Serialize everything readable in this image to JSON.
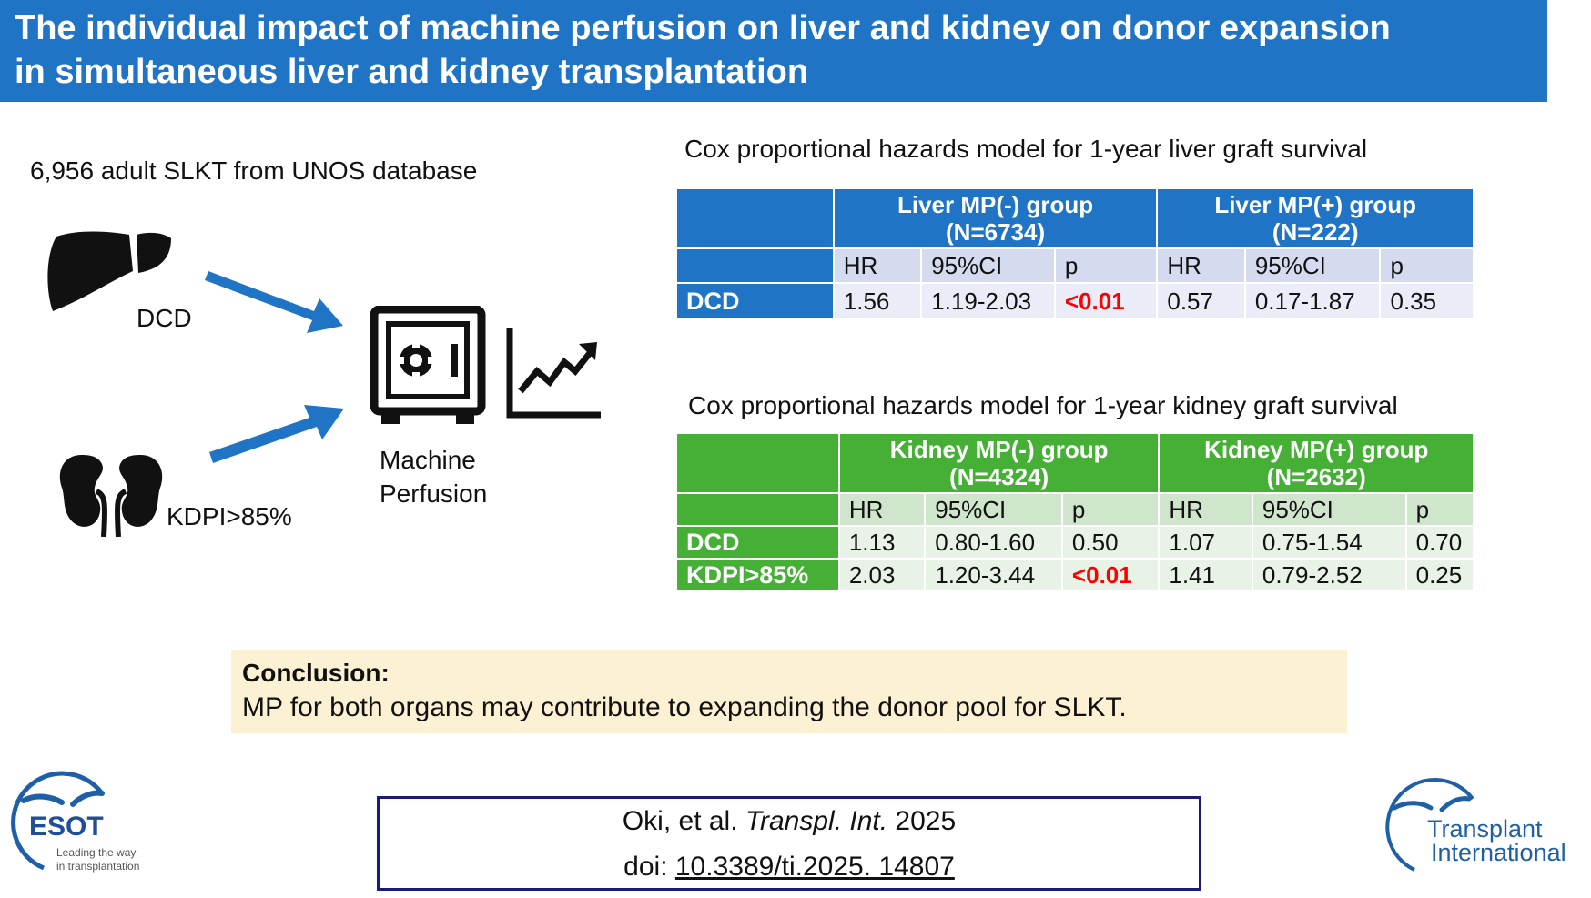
{
  "title": {
    "line1": "The individual impact of machine perfusion on liver and kidney on donor expansion",
    "line2": "in simultaneous liver and kidney transplantation"
  },
  "diagram": {
    "cohort": "6,956 adult SLKT from UNOS database",
    "liver_label": "DCD",
    "kidney_label": "KDPI>85%",
    "mp_label_line1": "Machine",
    "mp_label_line2": "Perfusion",
    "icons": [
      "liver-icon",
      "kidney-icon",
      "arrow-icon",
      "safe-icon",
      "trend-up-chart-icon"
    ]
  },
  "liver_table": {
    "title": "Cox proportional hazards model for 1-year liver graft survival",
    "group1_line1": "Liver MP(-) group",
    "group1_line2": "(N=6734)",
    "group2_line1": "Liver MP(+) group",
    "group2_line2": "(N=222)",
    "columns": [
      "HR",
      "95%CI",
      "p"
    ],
    "rows": [
      {
        "label": "DCD",
        "g1": [
          "1.56",
          "1.19-2.03",
          "<0.01"
        ],
        "g2": [
          "0.57",
          "0.17-1.87",
          "0.35"
        ]
      }
    ]
  },
  "kidney_table": {
    "title": "Cox proportional hazards model for 1-year kidney graft survival",
    "group1_line1": "Kidney MP(-) group",
    "group1_line2": "(N=4324)",
    "group2_line1": "Kidney MP(+) group",
    "group2_line2": "(N=2632)",
    "columns": [
      "HR",
      "95%CI",
      "p"
    ],
    "rows": [
      {
        "label": "DCD",
        "g1": [
          "1.13",
          "0.80-1.60",
          "0.50"
        ],
        "g2": [
          "1.07",
          "0.75-1.54",
          "0.70"
        ]
      },
      {
        "label": "KDPI>85%",
        "g1": [
          "2.03",
          "1.20-3.44",
          "<0.01"
        ],
        "g2": [
          "1.41",
          "0.79-2.52",
          "0.25"
        ]
      }
    ]
  },
  "conclusion": {
    "heading": "Conclusion:",
    "text": "MP for both organs may contribute to expanding the donor pool for SLKT."
  },
  "citation": {
    "authors": "Oki, et al. ",
    "journal": "Transpl. Int.",
    "year": " 2025",
    "doi_prefix": "doi: ",
    "doi": "10.3389/ti.2025. 14807"
  },
  "logos": {
    "esot_name": "ESOT",
    "esot_tag1": "Leading the way",
    "esot_tag2": "in transplantation",
    "ti_line1": "Transplant",
    "ti_line2": "International"
  },
  "colors": {
    "title_bar": "#1f74c5",
    "liver_header": "#1f74c5",
    "kidney_header": "#45b035",
    "significant": "#ff0000",
    "conclusion_bg": "#fdf1d3",
    "citation_border": "#1a1a7a",
    "arrow": "#1f74c5"
  }
}
